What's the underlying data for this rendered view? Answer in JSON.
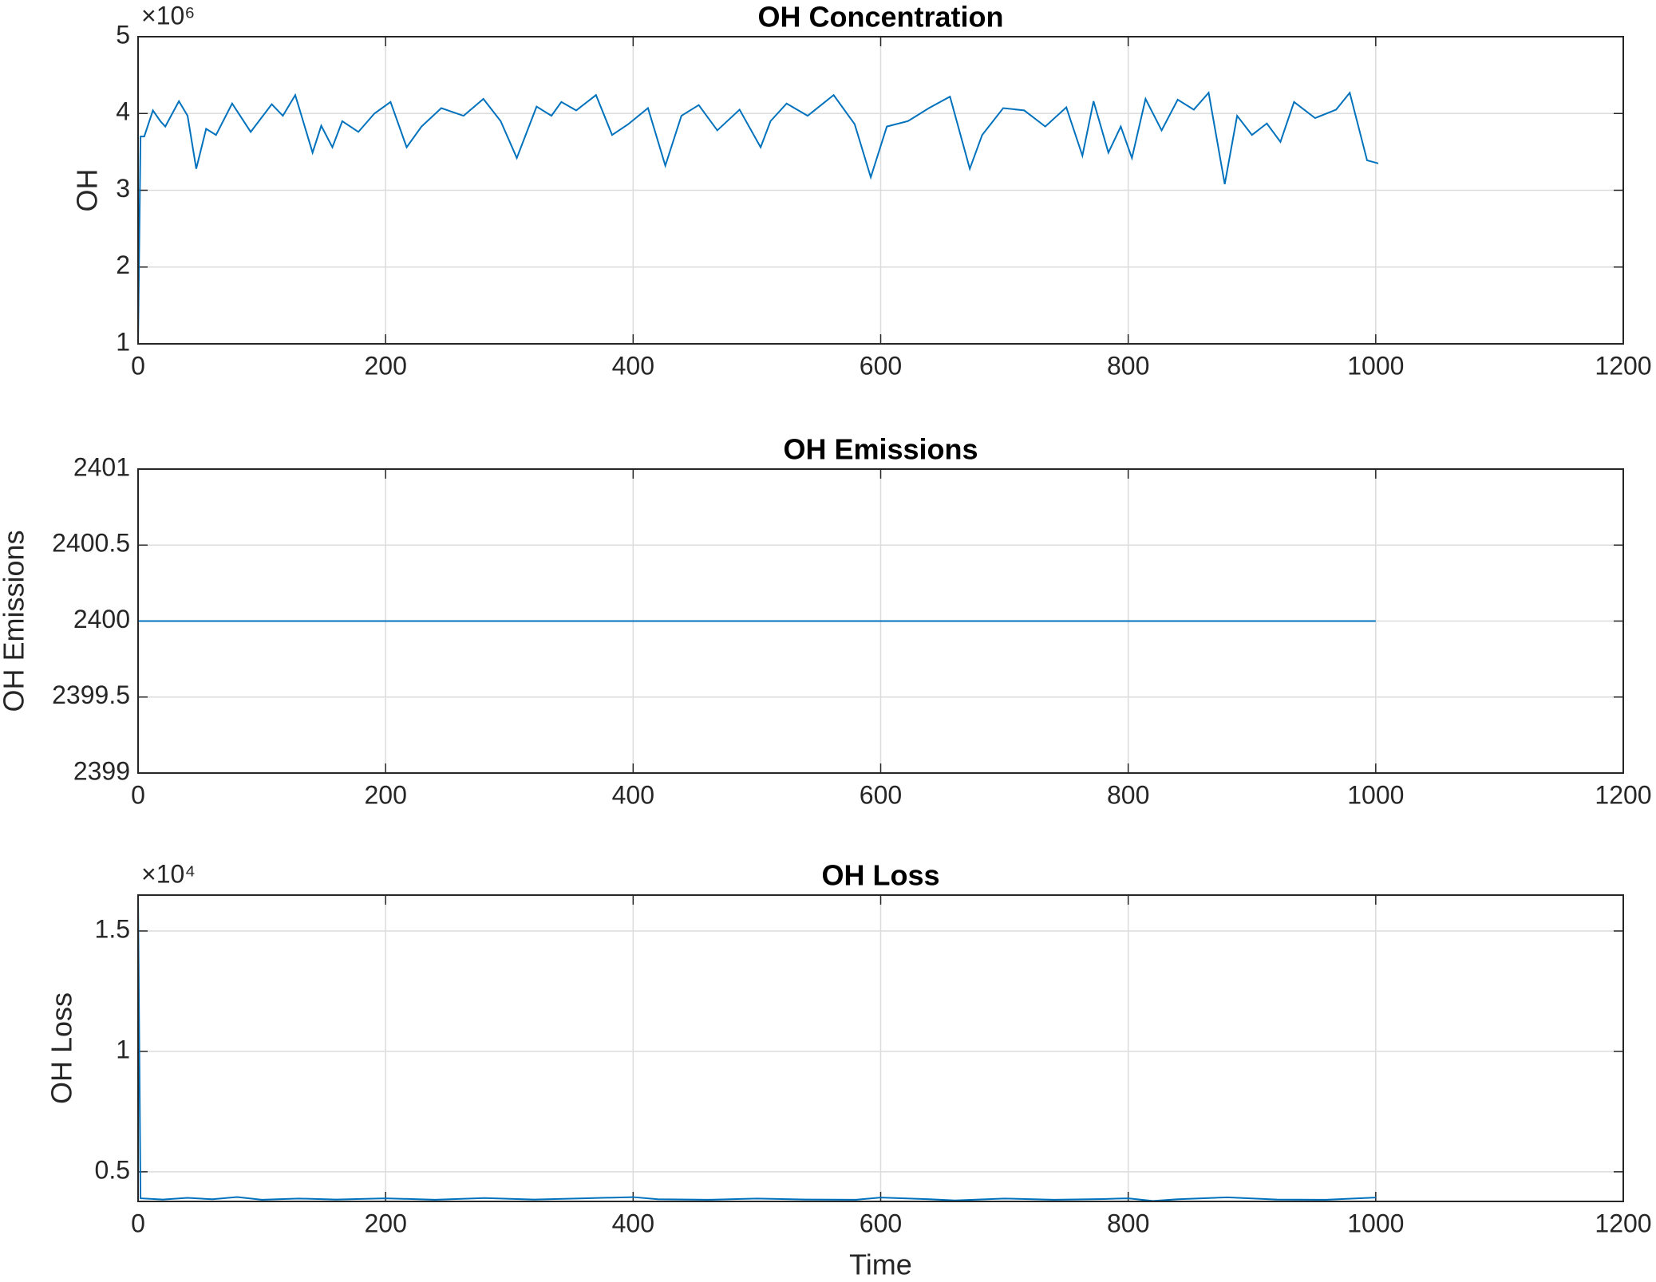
{
  "chart_data": [
    {
      "type": "line",
      "title": "OH Concentration",
      "y_label": "OH",
      "y_multiplier": "×10⁶",
      "color": "#0072bd",
      "grid": true,
      "xlim": [
        0,
        1200
      ],
      "xticks": [
        0,
        200,
        400,
        600,
        800,
        1000,
        1200
      ],
      "ylim": [
        1,
        5
      ],
      "yticks": [
        1,
        2,
        3,
        4,
        5
      ],
      "x": [
        0,
        2,
        5,
        12,
        18,
        22,
        33,
        40,
        47,
        55,
        63,
        76,
        91,
        108,
        117,
        127,
        141,
        148,
        157,
        165,
        178,
        191,
        204,
        217,
        229,
        245,
        263,
        279,
        293,
        306,
        322,
        334,
        342,
        354,
        370,
        383,
        396,
        412,
        426,
        439,
        453,
        468,
        486,
        503,
        511,
        524,
        541,
        562,
        579,
        592,
        605,
        622,
        639,
        656,
        672,
        682,
        699,
        716,
        733,
        750,
        763,
        772,
        784,
        794,
        803,
        814,
        827,
        840,
        853,
        865,
        878,
        888,
        900,
        912,
        923,
        934,
        951,
        968,
        979,
        993,
        1002
      ],
      "values": [
        1,
        3.7,
        3.7,
        4.04,
        3.9,
        3.83,
        4.16,
        3.97,
        3.28,
        3.8,
        3.72,
        4.13,
        3.76,
        4.12,
        3.97,
        4.24,
        3.49,
        3.84,
        3.56,
        3.9,
        3.76,
        4.0,
        4.15,
        3.56,
        3.83,
        4.07,
        3.97,
        4.19,
        3.9,
        3.42,
        4.09,
        3.97,
        4.15,
        4.04,
        4.24,
        3.72,
        3.86,
        4.07,
        3.32,
        3.97,
        4.11,
        3.78,
        4.05,
        3.56,
        3.9,
        4.13,
        3.97,
        4.24,
        3.86,
        3.17,
        3.83,
        3.9,
        4.07,
        4.22,
        3.28,
        3.72,
        4.07,
        4.04,
        3.83,
        4.08,
        3.45,
        4.16,
        3.49,
        3.83,
        3.42,
        4.19,
        3.78,
        4.18,
        4.05,
        4.27,
        3.08,
        3.97,
        3.72,
        3.87,
        3.63,
        4.15,
        3.94,
        4.05,
        4.27,
        3.39,
        3.35
      ]
    },
    {
      "type": "line",
      "title": "OH Emissions",
      "y_label": "OH Emissions",
      "color": "#0072bd",
      "grid": true,
      "xlim": [
        0,
        1200
      ],
      "xticks": [
        0,
        200,
        400,
        600,
        800,
        1000,
        1200
      ],
      "ylim": [
        2399,
        2401
      ],
      "yticks": [
        2399,
        2399.5,
        2400,
        2400.5,
        2401
      ],
      "x": [
        0,
        1000
      ],
      "values": [
        2400,
        2400
      ]
    },
    {
      "type": "line",
      "title": "OH Loss",
      "y_label": "OH Loss",
      "x_label": "Time",
      "y_multiplier": "×10⁴",
      "color": "#0072bd",
      "grid": true,
      "xlim": [
        0,
        1200
      ],
      "xticks": [
        0,
        200,
        400,
        600,
        800,
        1000,
        1200
      ],
      "ylim": [
        0.377,
        1.649
      ],
      "yticks": [
        0.5,
        1,
        1.5
      ],
      "x": [
        0,
        2,
        20,
        40,
        60,
        80,
        100,
        130,
        160,
        200,
        240,
        280,
        320,
        360,
        400,
        420,
        460,
        500,
        540,
        580,
        600,
        640,
        660,
        700,
        740,
        780,
        800,
        820,
        840,
        880,
        920,
        960,
        1000
      ],
      "values": [
        1.649,
        0.39,
        0.385,
        0.392,
        0.386,
        0.395,
        0.384,
        0.389,
        0.385,
        0.39,
        0.384,
        0.391,
        0.385,
        0.39,
        0.395,
        0.386,
        0.384,
        0.389,
        0.385,
        0.384,
        0.393,
        0.386,
        0.381,
        0.389,
        0.384,
        0.387,
        0.39,
        0.379,
        0.386,
        0.394,
        0.385,
        0.384,
        0.393
      ]
    }
  ]
}
